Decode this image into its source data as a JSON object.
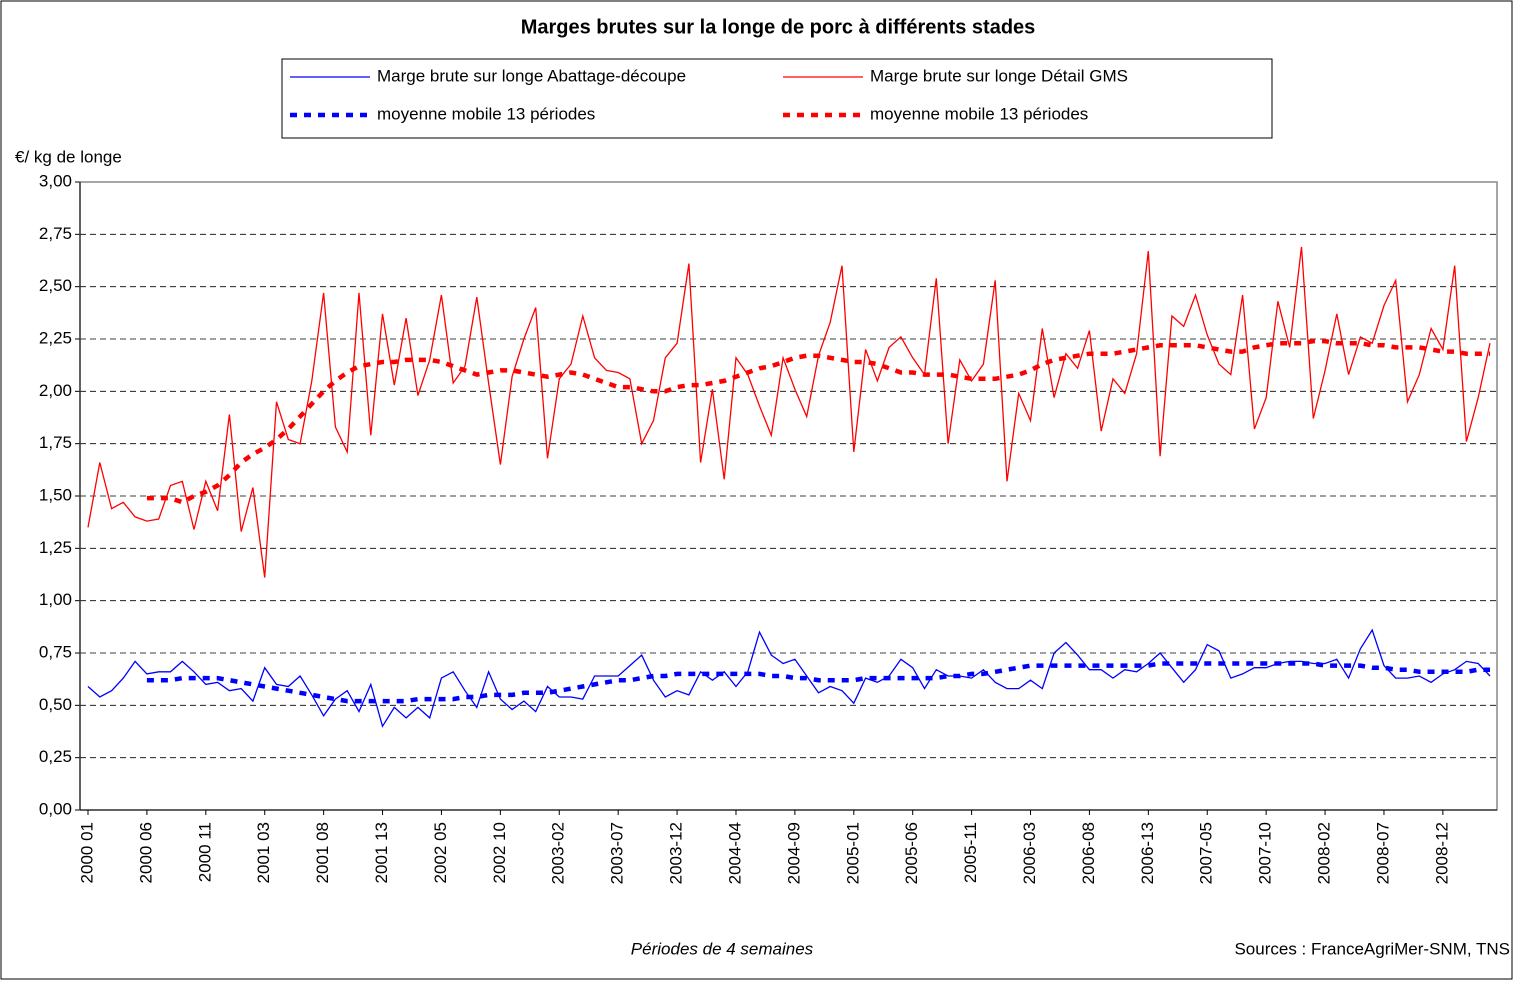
{
  "chart_data": {
    "type": "line",
    "title": "Marges brutes sur la longe de porc à différents stades",
    "y_label": "€/ kg de longe",
    "x_label": "Périodes de 4 semaines",
    "source": "Sources : FranceAgriMer-SNM, TNS",
    "categories": [
      "2000 01",
      null,
      null,
      null,
      null,
      "2000 06",
      null,
      null,
      null,
      null,
      "2000 11",
      null,
      null,
      null,
      null,
      "2001 03",
      null,
      null,
      null,
      null,
      "2001 08",
      null,
      null,
      null,
      null,
      "2001 13",
      null,
      null,
      null,
      null,
      "2002 05",
      null,
      null,
      null,
      null,
      "2002 10",
      null,
      null,
      null,
      null,
      "2003-02",
      null,
      null,
      null,
      null,
      "2003-07",
      null,
      null,
      null,
      null,
      "2003-12",
      null,
      null,
      null,
      null,
      "2004-04",
      null,
      null,
      null,
      null,
      "2004-09",
      null,
      null,
      null,
      null,
      "2005-01",
      null,
      null,
      null,
      null,
      "2005-06",
      null,
      null,
      null,
      null,
      "2005-11",
      null,
      null,
      null,
      null,
      "2006-03",
      null,
      null,
      null,
      null,
      "2006-08",
      null,
      null,
      null,
      null,
      "2006-13",
      null,
      null,
      null,
      null,
      "2007-05",
      null,
      null,
      null,
      null,
      "2007-10",
      null,
      null,
      null,
      null,
      "2008-02",
      null,
      null,
      null,
      null,
      "2008-07",
      null,
      null,
      null,
      null,
      "2008-12",
      null,
      null,
      null,
      null
    ],
    "series": [
      {
        "name": "Marge brute sur longe Abattage-découpe",
        "color": "#0000ff",
        "dashed": false,
        "values": [
          0.59,
          0.54,
          0.57,
          0.63,
          0.71,
          0.65,
          0.66,
          0.66,
          0.71,
          0.66,
          0.6,
          0.61,
          0.57,
          0.58,
          0.52,
          0.68,
          0.6,
          0.59,
          0.64,
          0.55,
          0.45,
          0.53,
          0.57,
          0.47,
          0.6,
          0.4,
          0.49,
          0.44,
          0.49,
          0.44,
          0.63,
          0.66,
          0.57,
          0.49,
          0.66,
          0.53,
          0.48,
          0.52,
          0.47,
          0.59,
          0.54,
          0.54,
          0.53,
          0.64,
          0.64,
          0.64,
          0.69,
          0.74,
          0.62,
          0.54,
          0.57,
          0.55,
          0.66,
          0.62,
          0.66,
          0.59,
          0.66,
          0.85,
          0.74,
          0.7,
          0.72,
          0.64,
          0.56,
          0.59,
          0.57,
          0.51,
          0.63,
          0.61,
          0.64,
          0.72,
          0.68,
          0.58,
          0.67,
          0.64,
          0.64,
          0.63,
          0.67,
          0.61,
          0.58,
          0.58,
          0.62,
          0.58,
          0.75,
          0.8,
          0.74,
          0.67,
          0.67,
          0.63,
          0.67,
          0.66,
          0.7,
          0.75,
          0.68,
          0.61,
          0.67,
          0.79,
          0.76,
          0.63,
          0.65,
          0.68,
          0.68,
          0.7,
          0.71,
          0.71,
          0.7,
          0.7,
          0.72,
          0.63,
          0.77,
          0.86,
          0.69,
          0.63,
          0.63,
          0.64,
          0.61,
          0.65,
          0.67,
          0.71,
          0.7,
          0.64
        ]
      },
      {
        "name": "Marge brute sur longe Détail GMS",
        "color": "#ff0000",
        "dashed": false,
        "values": [
          1.35,
          1.66,
          1.44,
          1.47,
          1.4,
          1.38,
          1.39,
          1.55,
          1.57,
          1.34,
          1.57,
          1.43,
          1.89,
          1.33,
          1.54,
          1.11,
          1.95,
          1.77,
          1.75,
          2.05,
          2.47,
          1.83,
          1.71,
          2.47,
          1.79,
          2.37,
          2.03,
          2.35,
          1.98,
          2.15,
          2.46,
          2.04,
          2.12,
          2.45,
          2.04,
          1.65,
          2.07,
          2.25,
          2.4,
          1.68,
          2.06,
          2.13,
          2.36,
          2.16,
          2.1,
          2.09,
          2.06,
          1.75,
          1.86,
          2.16,
          2.23,
          2.61,
          1.66,
          2.01,
          1.58,
          2.16,
          2.08,
          1.93,
          1.79,
          2.16,
          2.01,
          1.88,
          2.17,
          2.33,
          2.6,
          1.71,
          2.2,
          2.05,
          2.21,
          2.26,
          2.16,
          2.08,
          2.54,
          1.75,
          2.15,
          2.05,
          2.13,
          2.53,
          1.57,
          1.99,
          1.86,
          2.3,
          1.97,
          2.18,
          2.11,
          2.29,
          1.81,
          2.06,
          1.99,
          2.18,
          2.67,
          1.69,
          2.36,
          2.31,
          2.46,
          2.27,
          2.13,
          2.08,
          2.46,
          1.82,
          1.97,
          2.43,
          2.21,
          2.69,
          1.87,
          2.1,
          2.37,
          2.08,
          2.26,
          2.23,
          2.41,
          2.53,
          1.95,
          2.08,
          2.3,
          2.2,
          2.6,
          1.76,
          1.97,
          2.23
        ]
      },
      {
        "name": "moyenne mobile 13 périodes",
        "color": "#0000ff",
        "dashed": true,
        "values": [
          null,
          null,
          null,
          null,
          null,
          0.62,
          0.62,
          0.62,
          0.63,
          0.63,
          0.63,
          0.63,
          0.62,
          0.61,
          0.6,
          0.59,
          0.58,
          0.57,
          0.56,
          0.55,
          0.54,
          0.53,
          0.52,
          0.52,
          0.52,
          0.52,
          0.52,
          0.52,
          0.53,
          0.53,
          0.53,
          0.53,
          0.54,
          0.54,
          0.55,
          0.55,
          0.55,
          0.56,
          0.56,
          0.56,
          0.57,
          0.58,
          0.59,
          0.6,
          0.61,
          0.62,
          0.62,
          0.63,
          0.64,
          0.64,
          0.65,
          0.65,
          0.65,
          0.65,
          0.65,
          0.65,
          0.65,
          0.65,
          0.64,
          0.64,
          0.63,
          0.63,
          0.62,
          0.62,
          0.62,
          0.62,
          0.63,
          0.63,
          0.63,
          0.63,
          0.63,
          0.63,
          0.63,
          0.64,
          0.64,
          0.65,
          0.65,
          0.66,
          0.67,
          0.68,
          0.69,
          0.69,
          0.69,
          0.69,
          0.69,
          0.69,
          0.69,
          0.69,
          0.69,
          0.69,
          0.69,
          0.7,
          0.7,
          0.7,
          0.7,
          0.7,
          0.7,
          0.7,
          0.7,
          0.7,
          0.7,
          0.7,
          0.7,
          0.7,
          0.7,
          0.69,
          0.69,
          0.69,
          0.69,
          0.68,
          0.68,
          0.67,
          0.67,
          0.66,
          0.66,
          0.66,
          0.66,
          0.66,
          0.67,
          0.67
        ]
      },
      {
        "name": "moyenne mobile 13 périodes",
        "color": "#ff0000",
        "dashed": true,
        "values": [
          null,
          null,
          null,
          null,
          null,
          1.49,
          1.49,
          1.49,
          1.47,
          1.5,
          1.52,
          1.55,
          1.6,
          1.66,
          1.7,
          1.73,
          1.77,
          1.82,
          1.88,
          1.94,
          2.0,
          2.05,
          2.09,
          2.12,
          2.13,
          2.14,
          2.14,
          2.15,
          2.15,
          2.15,
          2.14,
          2.12,
          2.1,
          2.08,
          2.09,
          2.1,
          2.1,
          2.09,
          2.08,
          2.07,
          2.08,
          2.09,
          2.08,
          2.06,
          2.04,
          2.02,
          2.02,
          2.01,
          2.0,
          2.0,
          2.02,
          2.03,
          2.03,
          2.04,
          2.05,
          2.07,
          2.09,
          2.11,
          2.12,
          2.14,
          2.16,
          2.17,
          2.17,
          2.16,
          2.15,
          2.14,
          2.14,
          2.13,
          2.11,
          2.09,
          2.09,
          2.08,
          2.08,
          2.08,
          2.07,
          2.06,
          2.06,
          2.06,
          2.07,
          2.08,
          2.1,
          2.13,
          2.15,
          2.16,
          2.17,
          2.18,
          2.18,
          2.18,
          2.19,
          2.2,
          2.21,
          2.22,
          2.22,
          2.22,
          2.22,
          2.21,
          2.2,
          2.19,
          2.19,
          2.21,
          2.22,
          2.23,
          2.23,
          2.23,
          2.24,
          2.24,
          2.23,
          2.23,
          2.23,
          2.22,
          2.22,
          2.21,
          2.21,
          2.21,
          2.2,
          2.19,
          2.19,
          2.18,
          2.18,
          2.18
        ]
      }
    ],
    "ylim": [
      0,
      3
    ],
    "yticks": [
      {
        "value": 0,
        "label": "0,00"
      },
      {
        "value": 0.25,
        "label": "0,25"
      },
      {
        "value": 0.5,
        "label": "0,50"
      },
      {
        "value": 0.75,
        "label": "0,75"
      },
      {
        "value": 1,
        "label": "1,00"
      },
      {
        "value": 1.25,
        "label": "1,25"
      },
      {
        "value": 1.5,
        "label": "1,50"
      },
      {
        "value": 1.75,
        "label": "1,75"
      },
      {
        "value": 2,
        "label": "2,00"
      },
      {
        "value": 2.25,
        "label": "2,25"
      },
      {
        "value": 2.5,
        "label": "2,50"
      },
      {
        "value": 2.75,
        "label": "2,75"
      },
      {
        "value": 3,
        "label": "3,00"
      }
    ],
    "grid": true
  }
}
